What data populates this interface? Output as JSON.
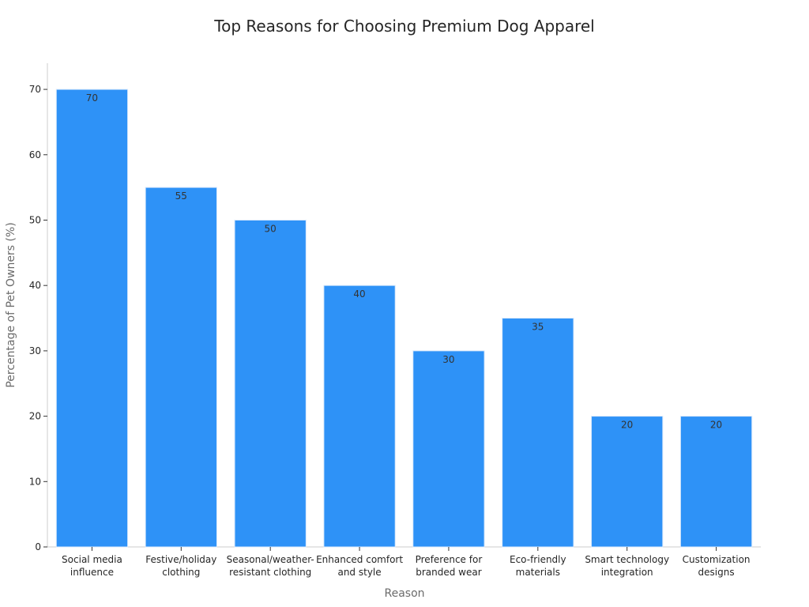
{
  "chart_data": {
    "type": "bar",
    "title": "Top Reasons for Choosing Premium Dog Apparel",
    "xlabel": "Reason",
    "ylabel": "Percentage of Pet Owners (%)",
    "categories": [
      [
        "Social media",
        "influence"
      ],
      [
        "Festive/holiday",
        "clothing"
      ],
      [
        "Seasonal/weather-",
        "resistant clothing"
      ],
      [
        "Enhanced comfort",
        "and style"
      ],
      [
        "Preference for",
        "branded wear"
      ],
      [
        "Eco-friendly",
        "materials"
      ],
      [
        "Smart technology",
        "integration"
      ],
      [
        "Customization",
        "designs"
      ]
    ],
    "values": [
      70,
      55,
      50,
      40,
      30,
      35,
      20,
      20
    ],
    "ylim": [
      0,
      74
    ],
    "yticks": [
      0,
      10,
      20,
      30,
      40,
      50,
      60,
      70
    ],
    "grid": false,
    "bar_color": "#2e92f7",
    "bar_edge_color": "#d8e8fb"
  }
}
